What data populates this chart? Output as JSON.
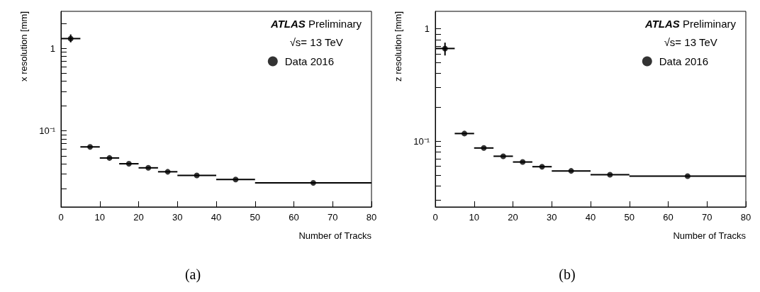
{
  "chart_data": [
    {
      "type": "scatter",
      "title": "(a)",
      "xlabel": "Number of Tracks",
      "ylabel": "x resolution [mm]",
      "annotations": [
        "ATLAS Preliminary",
        "√s= 13 TeV"
      ],
      "x": [
        2.5,
        7.5,
        12.5,
        17.5,
        22.5,
        27.5,
        35,
        45,
        65
      ],
      "series": [
        {
          "name": "Data 2016",
          "color": "#000000",
          "values": [
            1.31,
            0.064,
            0.047,
            0.04,
            0.0357,
            0.032,
            0.0289,
            0.0258,
            0.0235
          ],
          "errors": [
            [
              1.18,
              1.47
            ],
            null,
            null,
            null,
            null,
            null,
            null,
            null,
            null
          ],
          "xerrors": [
            2.5,
            2.5,
            2.5,
            2.5,
            2.5,
            2.5,
            5,
            5,
            15
          ]
        }
      ],
      "log": "y",
      "marker": "circle",
      "legend": "top right",
      "xlim": [
        0,
        80
      ],
      "xticks": [
        0,
        10,
        20,
        30,
        40,
        50,
        60,
        70,
        80
      ],
      "ylim": [
        0.012,
        2.8
      ],
      "yticks": [
        {
          "value": 0.02,
          "label": null
        },
        {
          "value": 0.03,
          "label": null
        },
        {
          "value": 0.04,
          "label": null
        },
        {
          "value": 0.05,
          "label": null
        },
        {
          "value": 0.06,
          "label": null
        },
        {
          "value": 0.07,
          "label": null
        },
        {
          "value": 0.08,
          "label": null
        },
        {
          "value": 0.09,
          "label": null
        },
        {
          "value": 0.1,
          "label": "10⁻¹"
        },
        {
          "value": 0.2,
          "label": null
        },
        {
          "value": 0.3,
          "label": null
        },
        {
          "value": 0.4,
          "label": null
        },
        {
          "value": 0.5,
          "label": null
        },
        {
          "value": 0.6,
          "label": null
        },
        {
          "value": 0.7,
          "label": null
        },
        {
          "value": 0.8,
          "label": null
        },
        {
          "value": 0.9,
          "label": null
        },
        1,
        {
          "value": 2,
          "label": null
        }
      ]
    },
    {
      "type": "scatter",
      "title": "(b)",
      "xlabel": "Number of Tracks",
      "ylabel": "z resolution [mm]",
      "annotations": [
        "ATLAS Preliminary",
        "√s= 13 TeV"
      ],
      "x": [
        2.5,
        7.5,
        12.5,
        17.5,
        22.5,
        27.5,
        35,
        45,
        65
      ],
      "series": [
        {
          "name": "Data 2016",
          "color": "#000000",
          "values": [
            0.668,
            0.117,
            0.087,
            0.0735,
            0.0653,
            0.0593,
            0.0544,
            0.0503,
            0.0489
          ],
          "errors": [
            [
              0.579,
              0.753
            ],
            null,
            null,
            null,
            null,
            null,
            null,
            null,
            null
          ],
          "xerrors": [
            2.5,
            2.5,
            2.5,
            2.5,
            2.5,
            2.5,
            5,
            5,
            15
          ]
        }
      ],
      "log": "y",
      "marker": "circle",
      "legend": "top right",
      "xlim": [
        0,
        80
      ],
      "xticks": [
        0,
        10,
        20,
        30,
        40,
        50,
        60,
        70,
        80
      ],
      "ylim": [
        0.026,
        1.43
      ],
      "yticks": [
        {
          "value": 0.03,
          "label": null
        },
        {
          "value": 0.04,
          "label": null
        },
        {
          "value": 0.05,
          "label": null
        },
        {
          "value": 0.06,
          "label": null
        },
        {
          "value": 0.07,
          "label": null
        },
        {
          "value": 0.08,
          "label": null
        },
        {
          "value": 0.09,
          "label": null
        },
        {
          "value": 0.1,
          "label": "10⁻¹"
        },
        {
          "value": 0.2,
          "label": null
        },
        {
          "value": 0.3,
          "label": null
        },
        {
          "value": 0.4,
          "label": null
        },
        {
          "value": 0.5,
          "label": null
        },
        {
          "value": 0.6,
          "label": null
        },
        {
          "value": 0.7,
          "label": null
        },
        {
          "value": 0.8,
          "label": null
        },
        {
          "value": 0.9,
          "label": null
        },
        1
      ]
    }
  ]
}
